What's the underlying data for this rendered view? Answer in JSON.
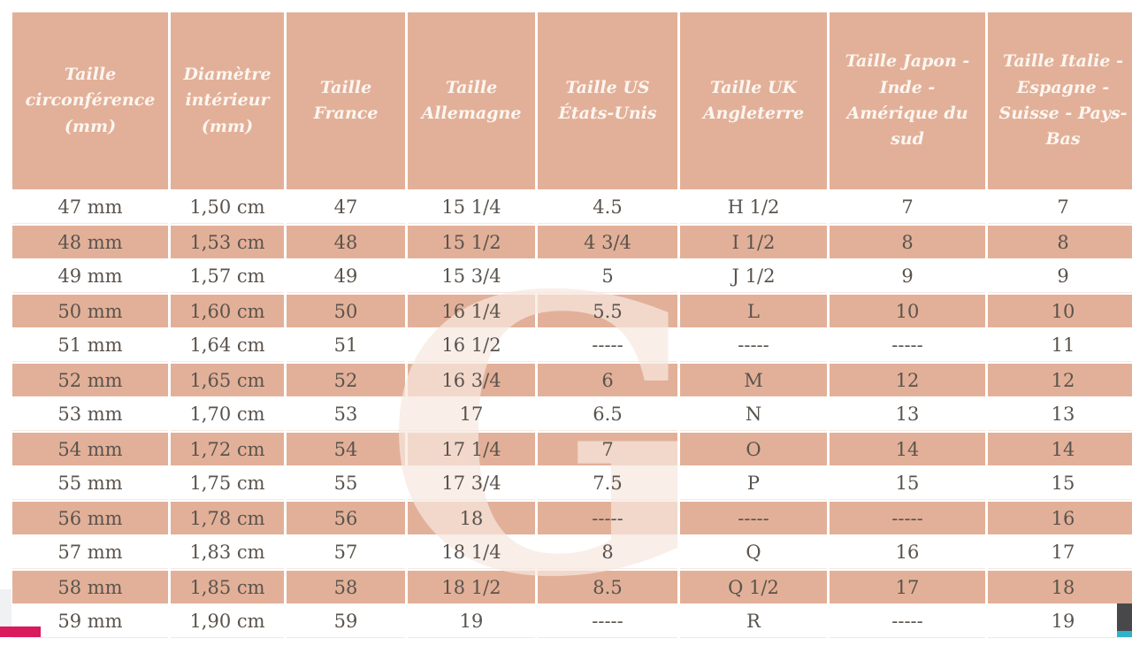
{
  "chart_data": {
    "type": "table",
    "title": "",
    "columns": [
      "Taille circonférence (mm)",
      "Diamètre intérieur (mm)",
      "Taille France",
      "Taille Allemagne",
      "Taille US États-Unis",
      "Taille UK Angleterre",
      "Taille Japon - Inde - Amérique du sud",
      "Taille Italie - Espagne - Suisse - Pays-Bas"
    ],
    "rows": [
      [
        "47 mm",
        "1,50 cm",
        "47",
        "15 1/4",
        "4.5",
        "H 1/2",
        "7",
        "7"
      ],
      [
        "48 mm",
        "1,53 cm",
        "48",
        "15 1/2",
        "4 3/4",
        "I 1/2",
        "8",
        "8"
      ],
      [
        "49 mm",
        "1,57 cm",
        "49",
        "15 3/4",
        "5",
        "J 1/2",
        "9",
        "9"
      ],
      [
        "50 mm",
        "1,60 cm",
        "50",
        "16 1/4",
        "5.5",
        "L",
        "10",
        "10"
      ],
      [
        "51 mm",
        "1,64 cm",
        "51",
        "16 1/2",
        "-----",
        "-----",
        "-----",
        "11"
      ],
      [
        "52 mm",
        "1,65 cm",
        "52",
        "16 3/4",
        "6",
        "M",
        "12",
        "12"
      ],
      [
        "53 mm",
        "1,70 cm",
        "53",
        "17",
        "6.5",
        "N",
        "13",
        "13"
      ],
      [
        "54 mm",
        "1,72 cm",
        "54",
        "17 1/4",
        "7",
        "O",
        "14",
        "14"
      ],
      [
        "55 mm",
        "1,75 cm",
        "55",
        "17 3/4",
        "7.5",
        "P",
        "15",
        "15"
      ],
      [
        "56 mm",
        "1,78 cm",
        "56",
        "18",
        "-----",
        "-----",
        "-----",
        "16"
      ],
      [
        "57 mm",
        "1,83 cm",
        "57",
        "18 1/4",
        "8",
        "Q",
        "16",
        "17"
      ],
      [
        "58 mm",
        "1,85 cm",
        "58",
        "18 1/2",
        "8.5",
        "Q 1/2",
        "17",
        "18"
      ],
      [
        "59 mm",
        "1,90 cm",
        "59",
        "19",
        "-----",
        "R",
        "-----",
        "19"
      ]
    ],
    "layout": {
      "striped_rows": "even data rows (48,50,52,54,56,58 mm) have salmon background",
      "header_background": "salmon",
      "grid": "white gaps between cells"
    }
  },
  "watermark": {
    "letter": "G"
  },
  "colors": {
    "salmon": "#e2b098",
    "header_text": "#fcf6f1",
    "cell_text": "#5a534d",
    "magenta": "#d91a5d",
    "gray_strip": "#f0f1f2",
    "dark_bar": "#48484b",
    "cyan": "#2fb3c8"
  }
}
